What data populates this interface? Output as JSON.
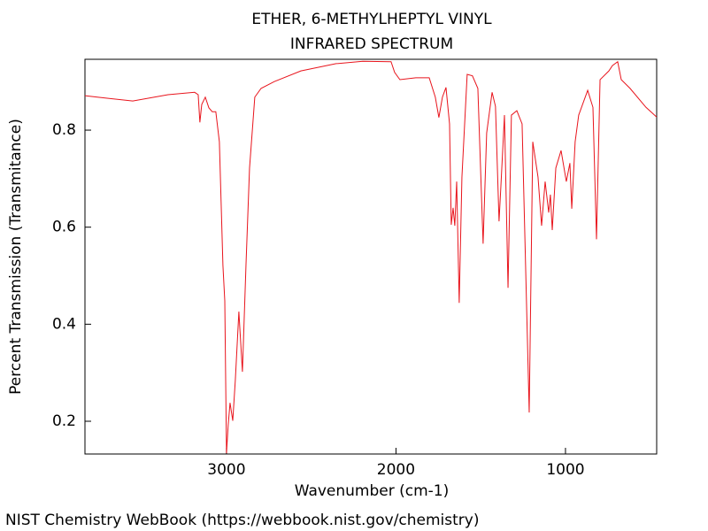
{
  "chart_data": {
    "type": "line",
    "title": "ETHER, 6-METHYLHEPTYL VINYL",
    "subtitle": "INFRARED SPECTRUM",
    "x_label": "Wavenumber (cm-1)",
    "y_label": "Percent Transmission (Transmitance)",
    "source": "NIST Chemistry WebBook (https://webbook.nist.gov/chemistry)",
    "xlim": [
      3835,
      462
    ],
    "ylim": [
      0.1325,
      0.946
    ],
    "xticks": [
      3000,
      2000,
      1000
    ],
    "yticks": [
      0.2,
      0.4,
      0.6,
      0.8
    ],
    "grid": false,
    "x": [
      3835,
      3762,
      3553,
      3345,
      3188,
      3167,
      3157,
      3146,
      3125,
      3104,
      3084,
      3063,
      3042,
      3021,
      3010,
      3000,
      2990,
      2979,
      2963,
      2948,
      2927,
      2906,
      2885,
      2864,
      2833,
      2796,
      2718,
      2561,
      2353,
      2196,
      2029,
      2008,
      1977,
      1883,
      1804,
      1768,
      1747,
      1726,
      1705,
      1684,
      1674,
      1663,
      1653,
      1642,
      1627,
      1611,
      1580,
      1549,
      1517,
      1486,
      1465,
      1433,
      1413,
      1392,
      1381,
      1360,
      1339,
      1319,
      1287,
      1256,
      1214,
      1193,
      1162,
      1141,
      1120,
      1099,
      1089,
      1078,
      1057,
      1026,
      995,
      974,
      963,
      943,
      922,
      869,
      838,
      817,
      796,
      744,
      723,
      692,
      671,
      619,
      525,
      462
    ],
    "series": [
      {
        "name": "spectrum",
        "color": "#e8141c",
        "values": [
          0.871,
          0.868,
          0.86,
          0.873,
          0.878,
          0.873,
          0.816,
          0.853,
          0.868,
          0.846,
          0.838,
          0.838,
          0.776,
          0.521,
          0.448,
          0.134,
          0.192,
          0.238,
          0.201,
          0.284,
          0.426,
          0.302,
          0.521,
          0.722,
          0.868,
          0.886,
          0.9,
          0.922,
          0.937,
          0.942,
          0.941,
          0.919,
          0.904,
          0.908,
          0.908,
          0.868,
          0.826,
          0.868,
          0.888,
          0.813,
          0.605,
          0.64,
          0.603,
          0.694,
          0.444,
          0.703,
          0.915,
          0.912,
          0.886,
          0.566,
          0.794,
          0.878,
          0.849,
          0.612,
          0.685,
          0.831,
          0.475,
          0.831,
          0.84,
          0.813,
          0.218,
          0.776,
          0.703,
          0.603,
          0.694,
          0.63,
          0.667,
          0.594,
          0.722,
          0.758,
          0.694,
          0.732,
          0.638,
          0.776,
          0.831,
          0.882,
          0.847,
          0.575,
          0.904,
          0.922,
          0.933,
          0.941,
          0.904,
          0.886,
          0.847,
          0.827
        ]
      }
    ]
  }
}
